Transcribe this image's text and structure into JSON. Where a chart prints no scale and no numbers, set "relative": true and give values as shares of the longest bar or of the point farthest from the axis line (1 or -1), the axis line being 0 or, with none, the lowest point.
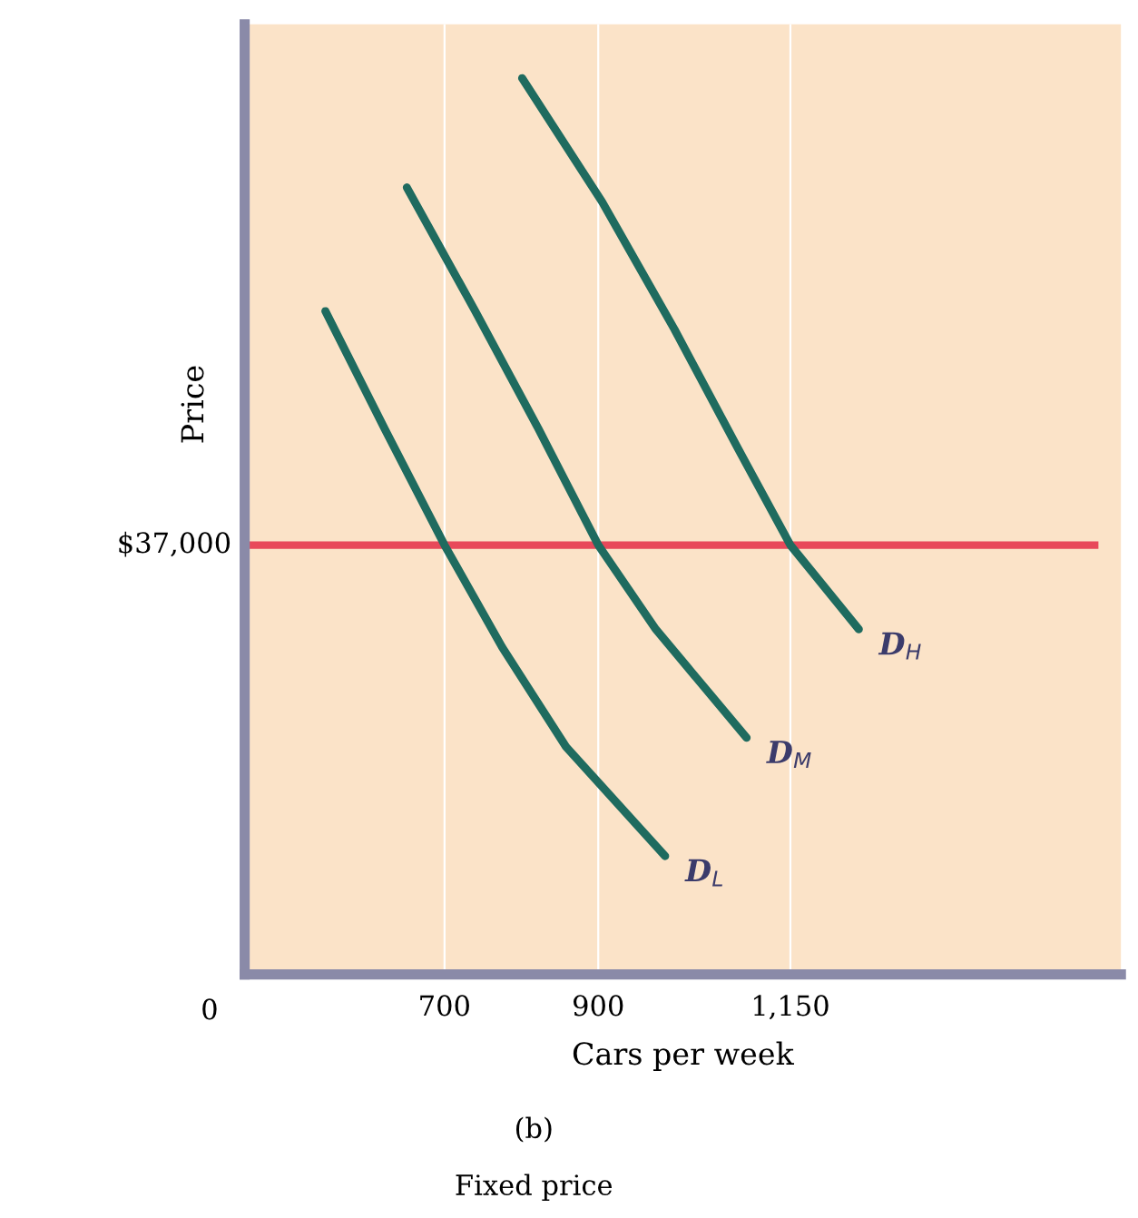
{
  "chart_data": {
    "type": "line",
    "relative": true,
    "xlabel": "Cars per week",
    "ylabel": "Price",
    "xlim": [
      440,
      1580
    ],
    "xticks": [
      700,
      900,
      {
        "value": 1150,
        "label": "1,150"
      }
    ],
    "series": [
      {
        "name": "D$_{L}$",
        "color": "#1f6b5f",
        "x": [
          545,
          622,
          700,
          775,
          858,
          987
        ],
        "values": [
          0.74,
          0.609,
          0.479,
          0.365,
          0.254,
          0.132
        ]
      },
      {
        "name": "D$_{M}$",
        "color": "#1f6b5f",
        "x": [
          651,
          740,
          822,
          900,
          975,
          1093
        ],
        "values": [
          0.878,
          0.74,
          0.609,
          0.479,
          0.385,
          0.264
        ]
      },
      {
        "name": "D$_{H}$",
        "color": "#1f6b5f",
        "x": [
          801,
          905,
          999,
          1081,
          1150,
          1239
        ],
        "values": [
          1.0,
          0.862,
          0.72,
          0.588,
          0.479,
          0.385
        ]
      }
    ],
    "ref_lines": [
      {
        "axis": "y",
        "value": 0.479,
        "color": "#e8495a"
      },
      {
        "axis": "x",
        "value": 700,
        "color": "#ffffff"
      },
      {
        "axis": "x",
        "value": 900,
        "color": "#ffffff"
      },
      {
        "axis": "x",
        "value": 1150,
        "color": "#ffffff"
      }
    ],
    "annotations": [
      "0",
      "(b)",
      "Fixed price",
      "$37,000"
    ],
    "marker": "none",
    "line_style": "solid",
    "grid": false,
    "legend": false
  }
}
